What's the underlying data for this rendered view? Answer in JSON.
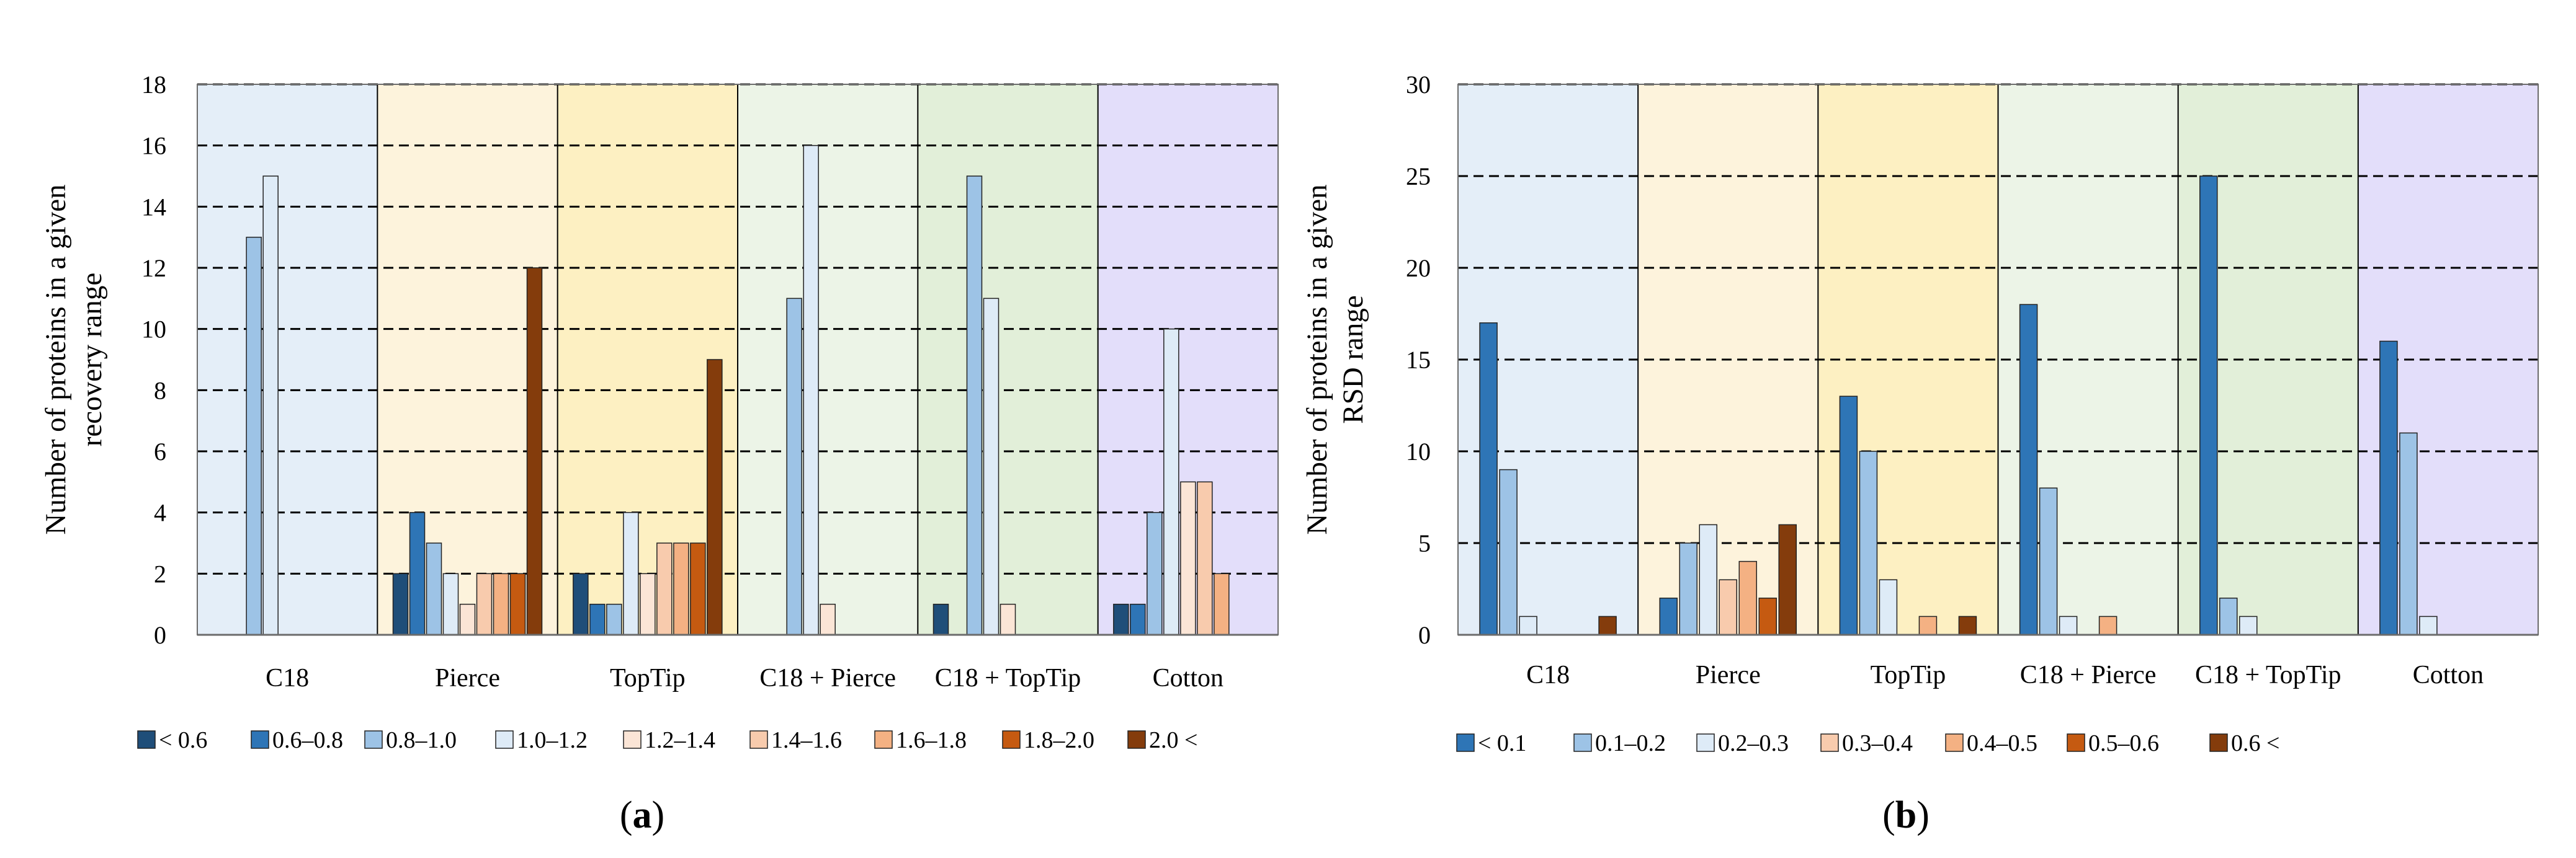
{
  "figure": {
    "panel_a_label": {
      "open": "(",
      "letter": "a",
      "close": ")"
    },
    "panel_b_label": {
      "open": "(",
      "letter": "b",
      "close": ")"
    }
  },
  "chart_data": [
    {
      "type": "bar",
      "title": "",
      "ylabel_lines": [
        "Number of proteins in a given",
        "recovery range"
      ],
      "ylabel": "Number of proteins in a given recovery range",
      "xlabel": "",
      "ylim": [
        0,
        18
      ],
      "yticks": [
        0,
        2,
        4,
        6,
        8,
        10,
        12,
        14,
        16,
        18
      ],
      "grid": "dashed horizontal",
      "legend_position": "bottom",
      "categories": [
        "C18",
        "Pierce",
        "TopTip",
        "C18 + Pierce",
        "C18 + TopTip",
        "Cotton"
      ],
      "category_backgrounds": [
        "#e4eef8",
        "#fdf3dc",
        "#fdf0c2",
        "#ecf4e7",
        "#e2efd9",
        "#e3defa"
      ],
      "series": [
        {
          "name": "< 0.6",
          "color": "#1f4e79",
          "values": [
            0,
            2,
            2,
            0,
            1,
            1
          ]
        },
        {
          "name": "0.6–0.8",
          "color": "#2e75b6",
          "values": [
            0,
            4,
            1,
            0,
            0,
            1
          ]
        },
        {
          "name": "0.8–1.0",
          "color": "#9dc3e6",
          "values": [
            13,
            3,
            1,
            11,
            15,
            4
          ]
        },
        {
          "name": "1.0–1.2",
          "color": "#deebf7",
          "values": [
            15,
            2,
            4,
            16,
            11,
            10
          ]
        },
        {
          "name": "1.2–1.4",
          "color": "#fbe5d6",
          "values": [
            0,
            1,
            2,
            1,
            1,
            5
          ]
        },
        {
          "name": "1.4–1.6",
          "color": "#f8cbad",
          "values": [
            0,
            2,
            3,
            0,
            0,
            5
          ]
        },
        {
          "name": "1.6–1.8",
          "color": "#f4b183",
          "values": [
            0,
            2,
            3,
            0,
            0,
            2
          ]
        },
        {
          "name": "1.8–2.0",
          "color": "#c55a11",
          "values": [
            0,
            2,
            3,
            0,
            0,
            0
          ]
        },
        {
          "name": "2.0 <",
          "color": "#843c0c",
          "values": [
            0,
            12,
            9,
            0,
            0,
            0
          ]
        }
      ]
    },
    {
      "type": "bar",
      "title": "",
      "ylabel_lines": [
        "Number of proteins in a given",
        "RSD range"
      ],
      "ylabel": "Number of proteins in a given RSD range",
      "xlabel": "",
      "ylim": [
        0,
        30
      ],
      "yticks": [
        0,
        5,
        10,
        15,
        20,
        25,
        30
      ],
      "grid": "dashed horizontal",
      "legend_position": "bottom",
      "categories": [
        "C18",
        "Pierce",
        "TopTip",
        "C18 + Pierce",
        "C18 + TopTip",
        "Cotton"
      ],
      "category_backgrounds": [
        "#e4eef8",
        "#fdf3dc",
        "#fdf0c2",
        "#ecf4e7",
        "#e2efd9",
        "#e3defa"
      ],
      "series": [
        {
          "name": "< 0.1",
          "color": "#2e75b6",
          "values": [
            17,
            2,
            13,
            18,
            25,
            16
          ]
        },
        {
          "name": "0.1–0.2",
          "color": "#9dc3e6",
          "values": [
            9,
            5,
            10,
            8,
            2,
            11
          ]
        },
        {
          "name": "0.2–0.3",
          "color": "#deebf7",
          "values": [
            1,
            6,
            3,
            1,
            1,
            1
          ]
        },
        {
          "name": "0.3–0.4",
          "color": "#f8cbad",
          "values": [
            0,
            3,
            0,
            0,
            0,
            0
          ]
        },
        {
          "name": "0.4–0.5",
          "color": "#f4b183",
          "values": [
            0,
            4,
            1,
            1,
            0,
            0
          ]
        },
        {
          "name": "0.5–0.6",
          "color": "#c55a11",
          "values": [
            0,
            2,
            0,
            0,
            0,
            0
          ]
        },
        {
          "name": "0.6 <",
          "color": "#843c0c",
          "values": [
            1,
            6,
            1,
            0,
            0,
            0
          ]
        }
      ]
    }
  ]
}
